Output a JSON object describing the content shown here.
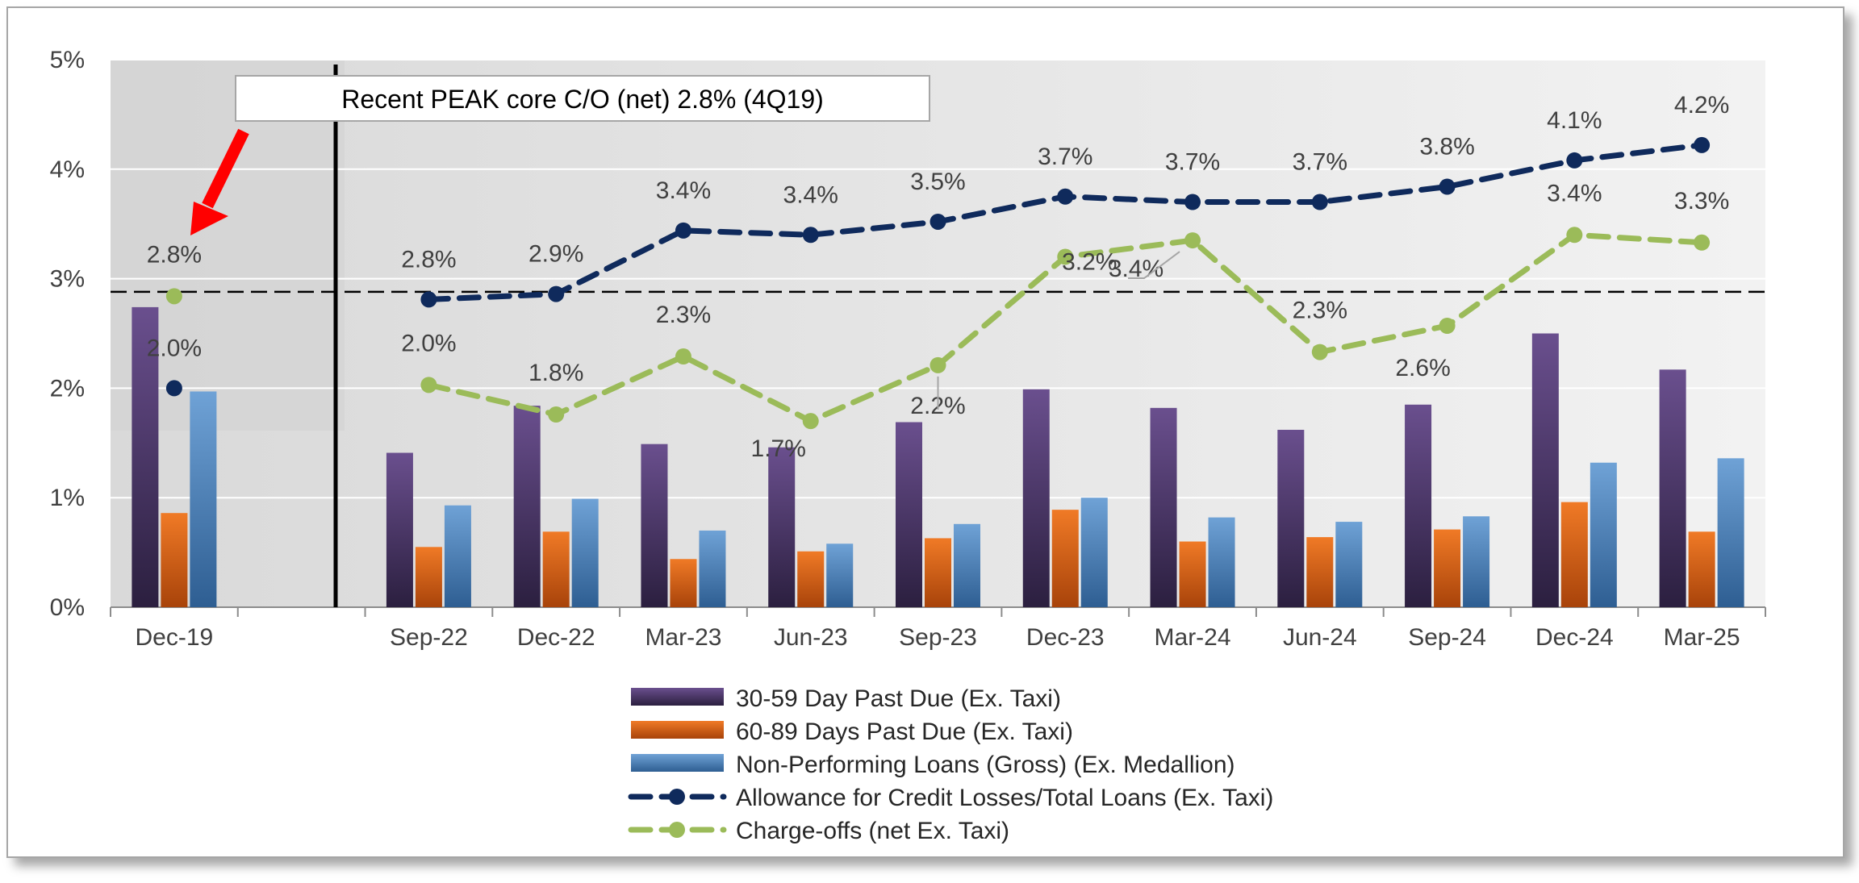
{
  "chart_data": {
    "type": "bar",
    "title": "",
    "xlabel": "",
    "ylabel": "",
    "ylim": [
      0,
      5
    ],
    "y_ticks": [
      "0%",
      "1%",
      "2%",
      "3%",
      "4%",
      "5%"
    ],
    "categories": [
      "Dec-19",
      "",
      "Sep-22",
      "Dec-22",
      "Mar-23",
      "Jun-23",
      "Sep-23",
      "Dec-23",
      "Mar-24",
      "Jun-24",
      "Sep-24",
      "Dec-24",
      "Mar-25"
    ],
    "series": [
      {
        "name": "30-59 Day Past Due (Ex. Taxi)",
        "type": "bar",
        "color": "#4f3b6b",
        "values": [
          2.74,
          null,
          1.41,
          1.84,
          1.49,
          1.46,
          1.69,
          1.99,
          1.82,
          1.62,
          1.85,
          2.5,
          2.17
        ]
      },
      {
        "name": "60-89 Days Past Due (Ex. Taxi)",
        "type": "bar",
        "color": "#e06010",
        "values": [
          0.86,
          null,
          0.55,
          0.69,
          0.44,
          0.51,
          0.63,
          0.89,
          0.6,
          0.64,
          0.71,
          0.96,
          0.69
        ]
      },
      {
        "name": "Non-Performing Loans (Gross) (Ex. Medallion)",
        "type": "bar",
        "color": "#4a7fb8",
        "values": [
          1.97,
          null,
          0.93,
          0.99,
          0.7,
          0.58,
          0.76,
          1.0,
          0.82,
          0.78,
          0.83,
          1.32,
          1.36
        ]
      },
      {
        "name": "Allowance for Credit Losses/Total Loans (Ex. Taxi)",
        "type": "line",
        "color": "#0f2a5c",
        "values": [
          2.0,
          null,
          2.81,
          2.86,
          3.44,
          3.4,
          3.52,
          3.75,
          3.7,
          3.7,
          3.84,
          4.08,
          4.22
        ],
        "labels": [
          "2.0%",
          "",
          "2.8%",
          "2.9%",
          "3.4%",
          "3.4%",
          "3.5%",
          "3.7%",
          "3.7%",
          "3.7%",
          "3.8%",
          "4.1%",
          "4.2%"
        ]
      },
      {
        "name": "Charge-offs (net Ex. Taxi)",
        "type": "line",
        "color": "#9bbb59",
        "values": [
          2.84,
          null,
          2.03,
          1.76,
          2.29,
          1.7,
          2.21,
          3.2,
          3.35,
          2.33,
          2.57,
          3.4,
          3.33
        ],
        "labels": [
          "2.8%",
          "",
          "2.0%",
          "1.8%",
          "2.3%",
          "1.7%",
          "2.2%",
          "3.2%",
          "3.4%",
          "2.3%",
          "2.6%",
          "3.4%",
          "3.3%"
        ]
      }
    ],
    "reference_line": {
      "value": 2.88,
      "style": "dashed",
      "color": "#000000"
    },
    "annotations": [
      {
        "text": "Recent PEAK core C/O (net) 2.8% (4Q19)",
        "points_to": "Dec-19"
      }
    ],
    "legend_position": "bottom",
    "grid": true
  }
}
